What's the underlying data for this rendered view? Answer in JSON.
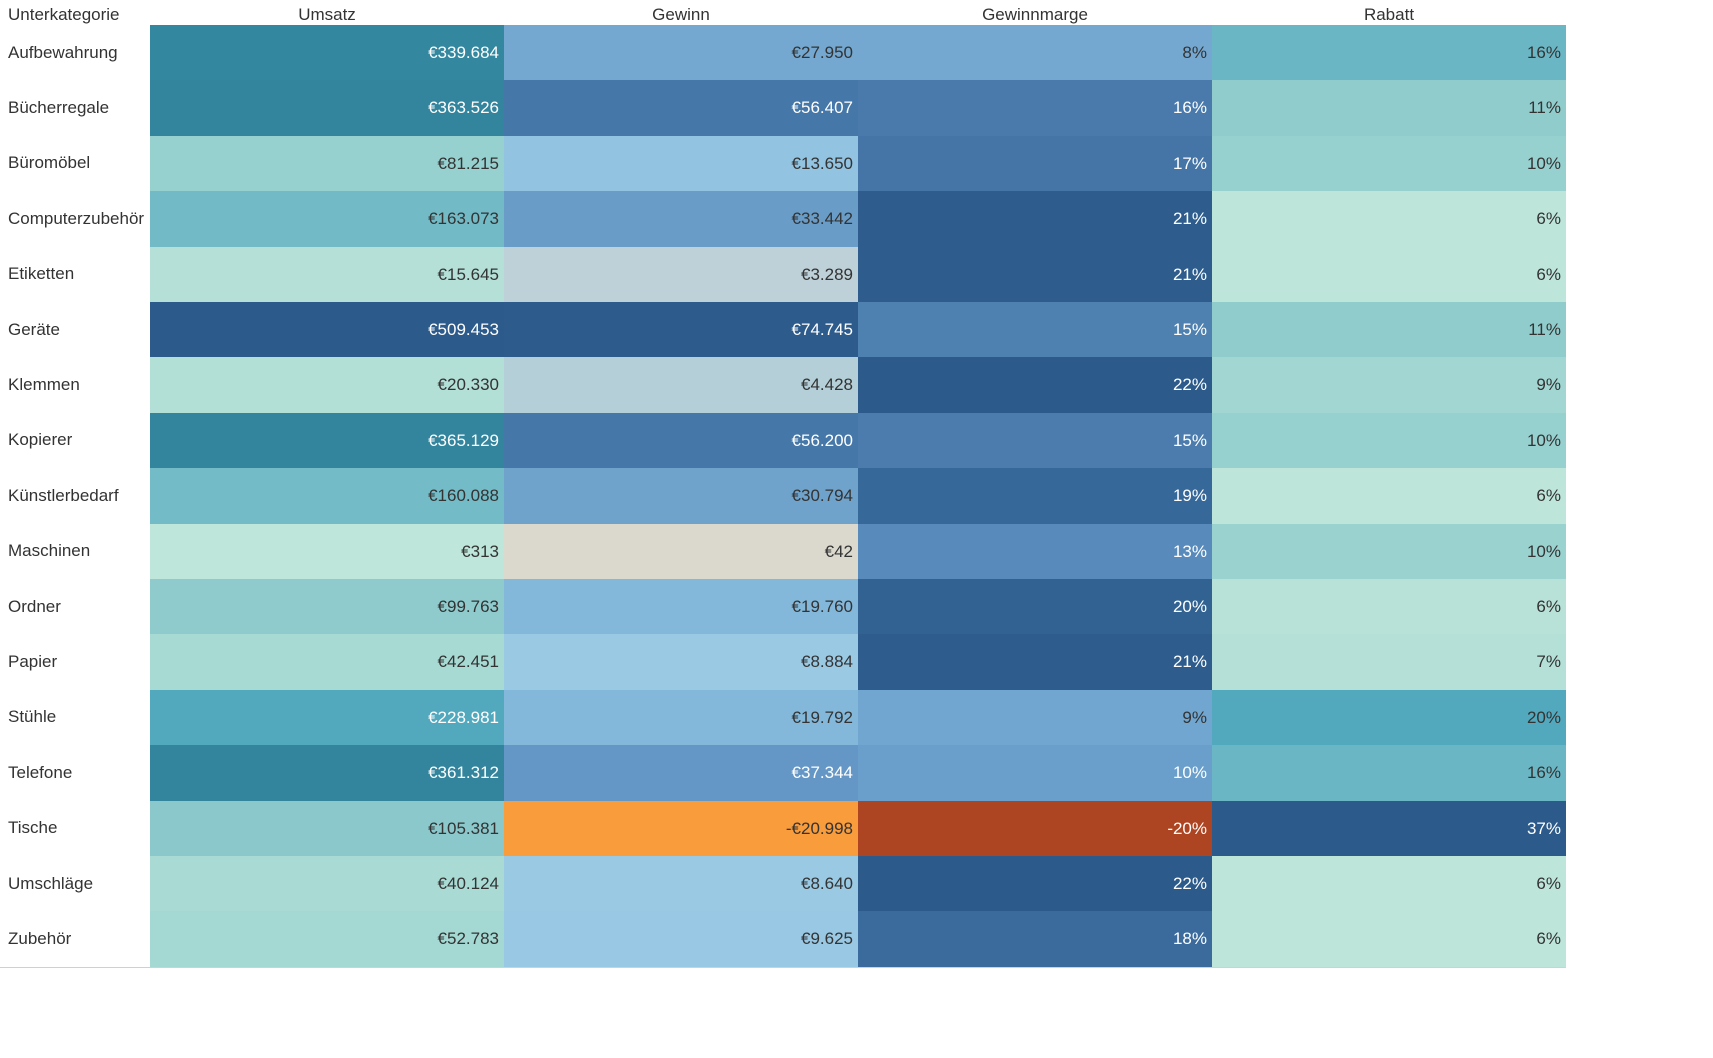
{
  "chart_data": {
    "type": "heatmap",
    "row_header": "Unterkategorie",
    "columns": [
      "Umsatz",
      "Gewinn",
      "Gewinnmarge",
      "Rabatt"
    ],
    "rows": [
      {
        "label": "Aufbewahrung",
        "values": [
          339684,
          27950,
          8,
          16
        ],
        "text": [
          "€339.684",
          "€27.950",
          "8%",
          "16%"
        ],
        "colors": [
          "#33879f",
          "#74a8d0",
          "#74a8d0",
          "#6bb6c4"
        ],
        "text_colors": [
          "#ffffff",
          "#333333",
          "#333333",
          "#333333"
        ]
      },
      {
        "label": "Bücherregale",
        "values": [
          363526,
          56407,
          16,
          11
        ],
        "text": [
          "€363.526",
          "€56.407",
          "16%",
          "11%"
        ],
        "colors": [
          "#33859e",
          "#4577a8",
          "#4a7aac",
          "#90cccc"
        ],
        "text_colors": [
          "#ffffff",
          "#ffffff",
          "#ffffff",
          "#333333"
        ]
      },
      {
        "label": "Büromöbel",
        "values": [
          81215,
          13650,
          17,
          10
        ],
        "text": [
          "€81.215",
          "€13.650",
          "17%",
          "10%"
        ],
        "colors": [
          "#96d0cf",
          "#92c3e0",
          "#4475a6",
          "#96d0cf"
        ],
        "text_colors": [
          "#333333",
          "#333333",
          "#ffffff",
          "#333333"
        ]
      },
      {
        "label": "Computerzubehör",
        "values": [
          163073,
          33442,
          21,
          6
        ],
        "text": [
          "€163.073",
          "€33.442",
          "21%",
          "6%"
        ],
        "colors": [
          "#72bac6",
          "#699dc8",
          "#2e5d8d",
          "#bde5da"
        ],
        "text_colors": [
          "#333333",
          "#333333",
          "#ffffff",
          "#333333"
        ]
      },
      {
        "label": "Etiketten",
        "values": [
          15645,
          3289,
          21,
          6
        ],
        "text": [
          "€15.645",
          "€3.289",
          "21%",
          "6%"
        ],
        "colors": [
          "#b4e0d7",
          "#bed1d8",
          "#2e5d8d",
          "#bde5da"
        ],
        "text_colors": [
          "#333333",
          "#333333",
          "#ffffff",
          "#333333"
        ]
      },
      {
        "label": "Geräte",
        "values": [
          509453,
          74745,
          15,
          11
        ],
        "text": [
          "€509.453",
          "€74.745",
          "15%",
          "11%"
        ],
        "colors": [
          "#2c5a8a",
          "#2d5b8b",
          "#4e80b0",
          "#90cccc"
        ],
        "text_colors": [
          "#ffffff",
          "#ffffff",
          "#ffffff",
          "#333333"
        ]
      },
      {
        "label": "Klemmen",
        "values": [
          20330,
          4428,
          22,
          9
        ],
        "text": [
          "€20.330",
          "€4.428",
          "22%",
          "9%"
        ],
        "colors": [
          "#b2dfd6",
          "#b4cfd8",
          "#2c5a8a",
          "#a2d6d2"
        ],
        "text_colors": [
          "#333333",
          "#333333",
          "#ffffff",
          "#333333"
        ]
      },
      {
        "label": "Kopierer",
        "values": [
          365129,
          56200,
          15,
          10
        ],
        "text": [
          "€365.129",
          "€56.200",
          "15%",
          "10%"
        ],
        "colors": [
          "#33859e",
          "#4577a8",
          "#4b7cad",
          "#96d0cf"
        ],
        "text_colors": [
          "#ffffff",
          "#ffffff",
          "#ffffff",
          "#333333"
        ]
      },
      {
        "label": "Künstlerbedarf",
        "values": [
          160088,
          30794,
          19,
          6
        ],
        "text": [
          "€160.088",
          "€30.794",
          "19%",
          "6%"
        ],
        "colors": [
          "#73bbc7",
          "#6fa3cc",
          "#37689a",
          "#bde5da"
        ],
        "text_colors": [
          "#333333",
          "#333333",
          "#ffffff",
          "#333333"
        ]
      },
      {
        "label": "Maschinen",
        "values": [
          313,
          42,
          13,
          10
        ],
        "text": [
          "€313",
          "€42",
          "13%",
          "10%"
        ],
        "colors": [
          "#bee6da",
          "#dbd8ce",
          "#588bbb",
          "#9ad2d0"
        ],
        "text_colors": [
          "#333333",
          "#333333",
          "#ffffff",
          "#333333"
        ]
      },
      {
        "label": "Ordner",
        "values": [
          99763,
          19760,
          20,
          6
        ],
        "text": [
          "€99.763",
          "€19.760",
          "20%",
          "6%"
        ],
        "colors": [
          "#8fcbcd",
          "#83b8da",
          "#316292",
          "#b8e1d7"
        ],
        "text_colors": [
          "#333333",
          "#333333",
          "#ffffff",
          "#333333"
        ]
      },
      {
        "label": "Papier",
        "values": [
          42451,
          8884,
          21,
          7
        ],
        "text": [
          "€42.451",
          "€8.884",
          "21%",
          "7%"
        ],
        "colors": [
          "#a8dad4",
          "#9ac9e4",
          "#2e5d8d",
          "#b4e0d7"
        ],
        "text_colors": [
          "#333333",
          "#333333",
          "#ffffff",
          "#333333"
        ]
      },
      {
        "label": "Stühle",
        "values": [
          228981,
          19792,
          9,
          20
        ],
        "text": [
          "€228.981",
          "€19.792",
          "9%",
          "20%"
        ],
        "colors": [
          "#52a8bd",
          "#83b8da",
          "#70a6cf",
          "#52a8bd"
        ],
        "text_colors": [
          "#ffffff",
          "#333333",
          "#333333",
          "#333333"
        ]
      },
      {
        "label": "Telefone",
        "values": [
          361312,
          37344,
          10,
          16
        ],
        "text": [
          "€361.312",
          "€37.344",
          "10%",
          "16%"
        ],
        "colors": [
          "#33859e",
          "#6497c5",
          "#6a9ecb",
          "#6bb6c4"
        ],
        "text_colors": [
          "#ffffff",
          "#ffffff",
          "#ffffff",
          "#333333"
        ]
      },
      {
        "label": "Tische",
        "values": [
          105381,
          -20998,
          -20,
          37
        ],
        "text": [
          "€105.381",
          "-€20.998",
          "-20%",
          "37%"
        ],
        "colors": [
          "#8ac8cc",
          "#f89c3c",
          "#ae4522",
          "#2c5a8a"
        ],
        "text_colors": [
          "#333333",
          "#333333",
          "#ffffff",
          "#ffffff"
        ]
      },
      {
        "label": "Umschläge",
        "values": [
          40124,
          8640,
          22,
          6
        ],
        "text": [
          "€40.124",
          "€8.640",
          "22%",
          "6%"
        ],
        "colors": [
          "#a9dbd4",
          "#9ac9e4",
          "#2c5a8a",
          "#bde5da"
        ],
        "text_colors": [
          "#333333",
          "#333333",
          "#ffffff",
          "#333333"
        ]
      },
      {
        "label": "Zubehör",
        "values": [
          52783,
          9625,
          18,
          6
        ],
        "text": [
          "€52.783",
          "€9.625",
          "18%",
          "6%"
        ],
        "colors": [
          "#a4d8d3",
          "#98c8e3",
          "#3b6b9d",
          "#bde5da"
        ],
        "text_colors": [
          "#333333",
          "#333333",
          "#ffffff",
          "#333333"
        ]
      }
    ],
    "title": "",
    "xlabel": "",
    "ylabel": "",
    "grid": false,
    "legend": "none"
  }
}
